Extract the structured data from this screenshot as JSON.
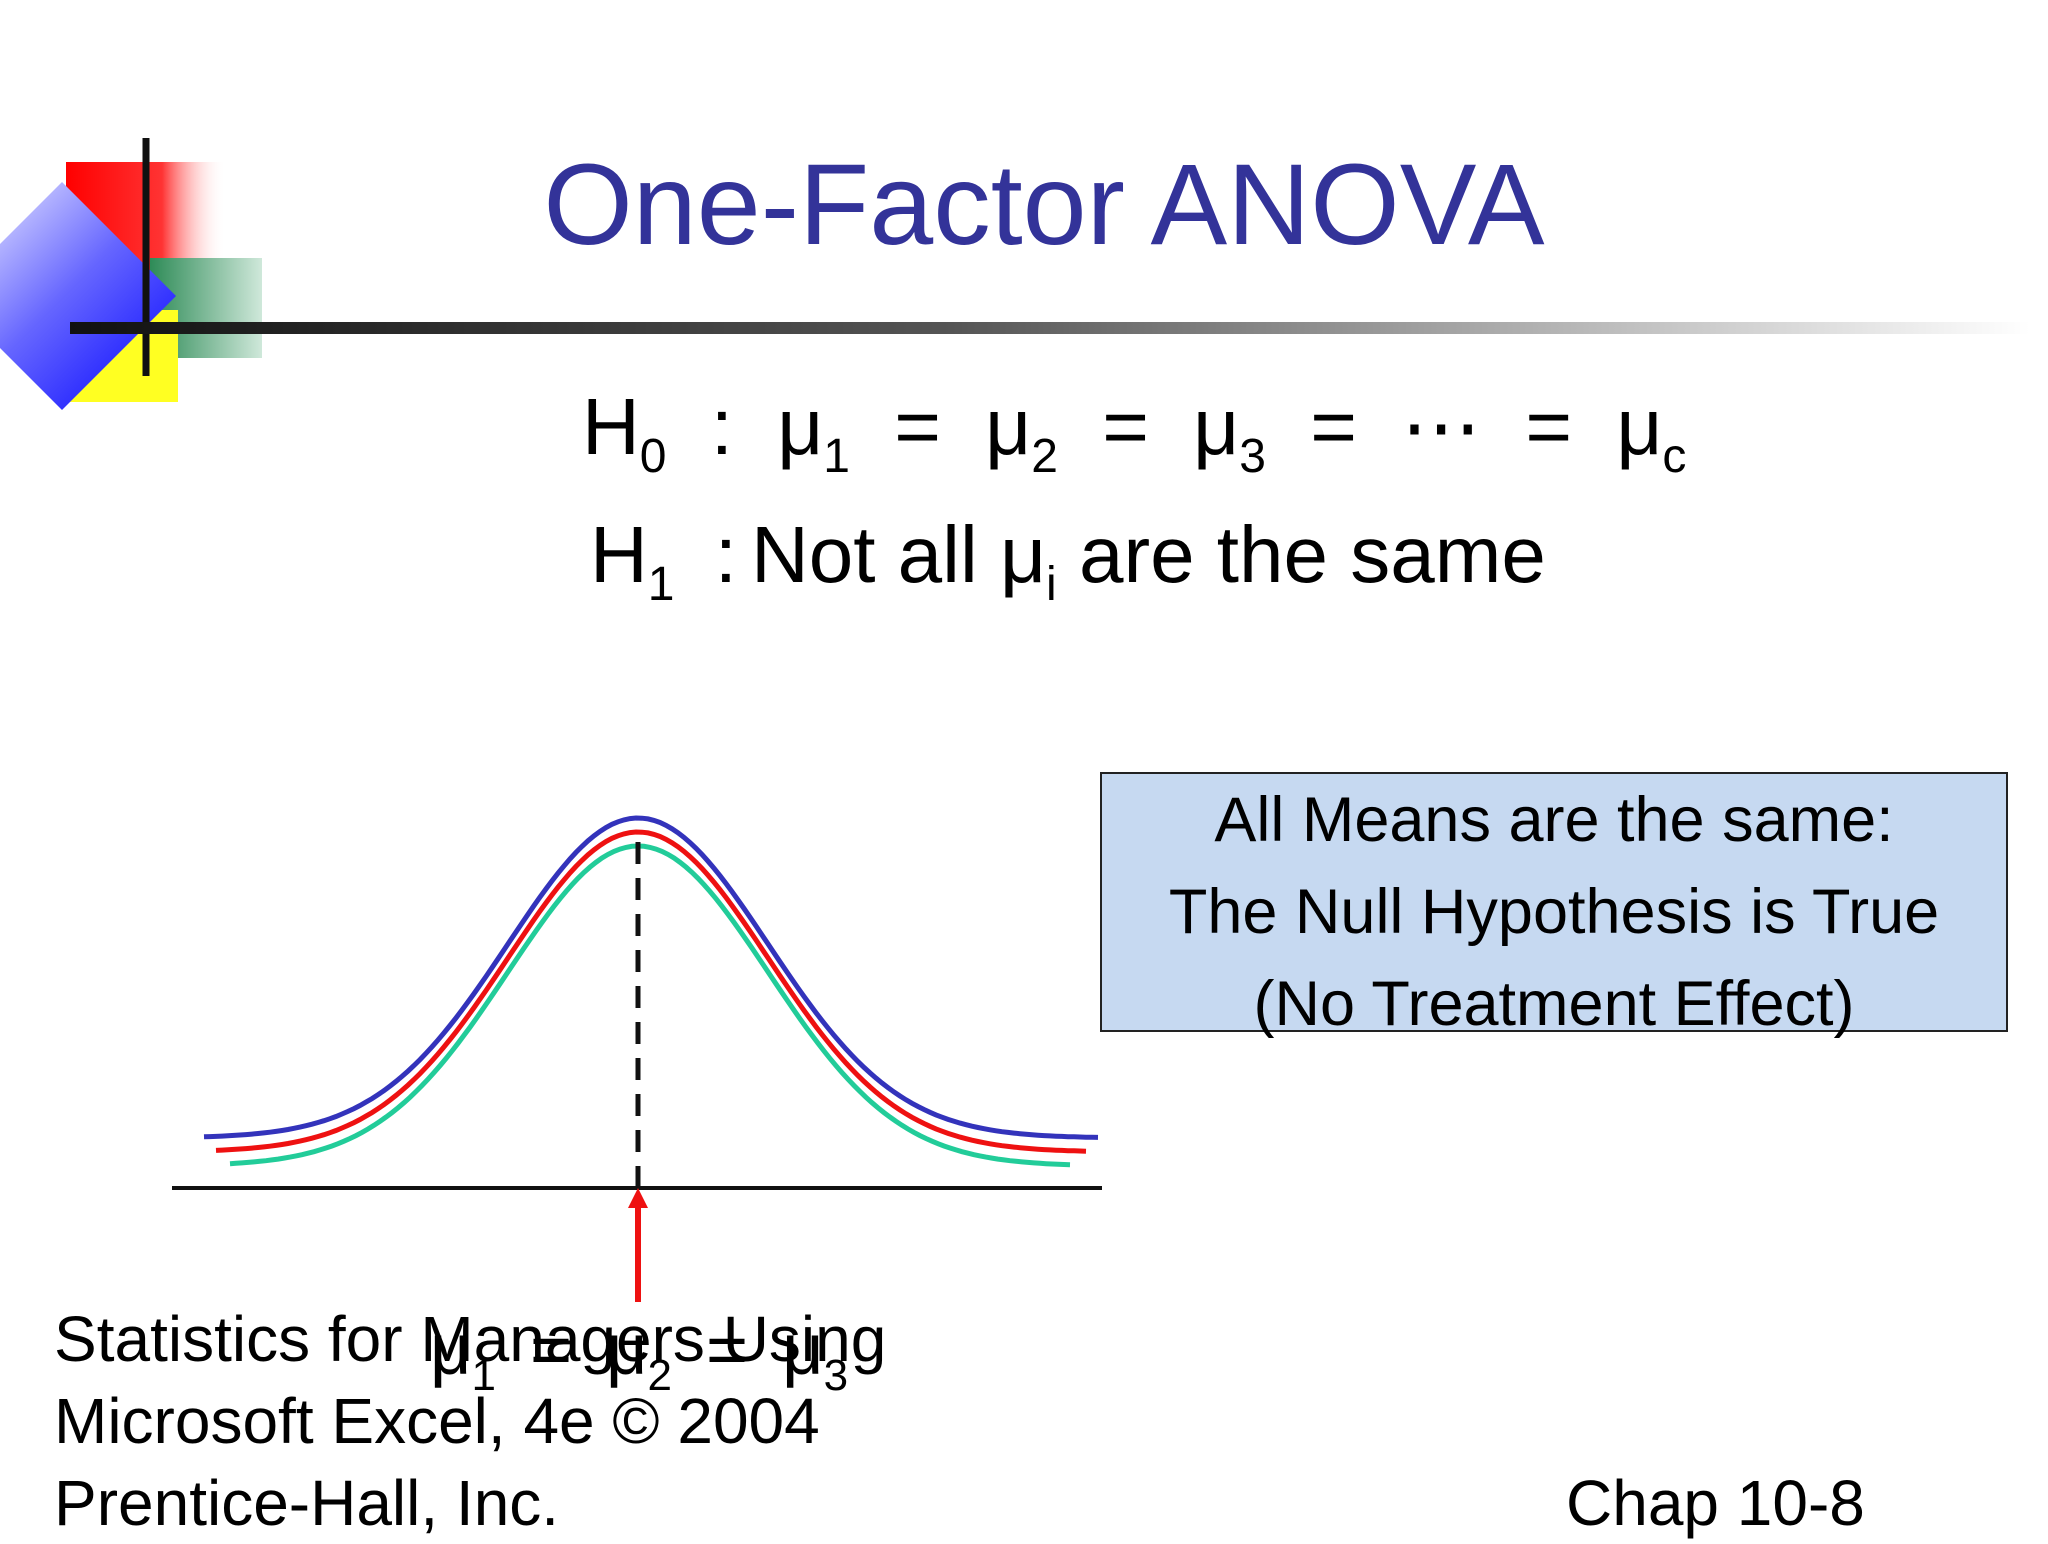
{
  "slide": {
    "title": "One-Factor ANOVA",
    "null_hypothesis": {
      "label": "H",
      "label_sub": "0",
      "terms": [
        {
          "sym": "μ",
          "sub": "1"
        },
        {
          "sym": "μ",
          "sub": "2"
        },
        {
          "sym": "μ",
          "sub": "3"
        },
        {
          "sym": "⋯",
          "sub": ""
        },
        {
          "sym": "μ",
          "sub": "c"
        }
      ]
    },
    "alt_hypothesis": {
      "label": "H",
      "label_sub": "1",
      "text_before": "Not all",
      "mu": "μ",
      "mu_sub": "i",
      "text_after": "are the same"
    },
    "callout": {
      "lines": [
        "All Means are the same:",
        "The Null Hypothesis is True",
        "(No Treatment Effect)"
      ]
    },
    "axis_equation": {
      "terms": [
        {
          "sym": "μ",
          "sub": "1"
        },
        {
          "sym": "μ",
          "sub": "2"
        },
        {
          "sym": "μ",
          "sub": "3"
        }
      ]
    },
    "footer": {
      "left_lines": [
        "Statistics for Managers Using",
        "Microsoft Excel, 4e © 2004",
        "Prentice-Hall, Inc."
      ],
      "right": "Chap 10-8"
    },
    "colors": {
      "title": "#333399",
      "curve_1": "#3333bb",
      "curve_2": "#ee1111",
      "curve_3": "#22cc99",
      "callout_bg": "#c6d9f1",
      "arrow": "#ee1111"
    }
  }
}
